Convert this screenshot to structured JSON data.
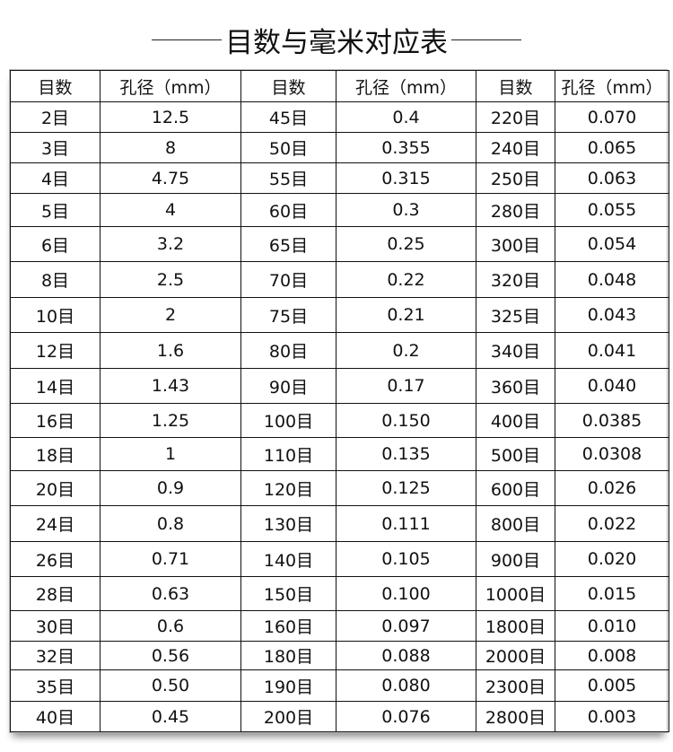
{
  "title": "目数与毫米对应表",
  "headers": [
    "目数",
    "孔径（mm）",
    "目数",
    "孔径（mm）",
    "目数",
    "孔径（mm）"
  ],
  "rows": [
    [
      "2目",
      "12.5",
      "45目",
      "0.4",
      "220目",
      "0.070"
    ],
    [
      "3目",
      "8",
      "50目",
      "0.355",
      "240目",
      "0.065"
    ],
    [
      "4目",
      "4.75",
      "55目",
      "0.315",
      "250目",
      "0.063"
    ],
    [
      "5目",
      "4",
      "60目",
      "0.3",
      "280目",
      "0.055"
    ],
    [
      "6目",
      "3.2",
      "65目",
      "0.25",
      "300目",
      "0.054"
    ],
    [
      "8目",
      "2.5",
      "70目",
      "0.22",
      "320目",
      "0.048"
    ],
    [
      "10目",
      "2",
      "75目",
      "0.21",
      "325目",
      "0.043"
    ],
    [
      "12目",
      "1.6",
      "80目",
      "0.2",
      "340目",
      "0.041"
    ],
    [
      "14目",
      "1.43",
      "90目",
      "0.17",
      "360目",
      "0.040"
    ],
    [
      "16目",
      "1.25",
      "100目",
      "0.150",
      "400目",
      "0.0385"
    ],
    [
      "18目",
      "1",
      "110目",
      "0.135",
      "500目",
      "0.0308"
    ],
    [
      "20目",
      "0.9",
      "120目",
      "0.125",
      "600目",
      "0.026"
    ],
    [
      "24目",
      "0.8",
      "130目",
      "0.111",
      "800目",
      "0.022"
    ],
    [
      "26目",
      "0.71",
      "140目",
      "0.105",
      "900目",
      "0.020"
    ],
    [
      "28目",
      "0.63",
      "150目",
      "0.100",
      "1000目",
      "0.015"
    ],
    [
      "30目",
      "0.6",
      "160目",
      "0.097",
      "1800目",
      "0.010"
    ],
    [
      "32目",
      "0.56",
      "180目",
      "0.088",
      "2000目",
      "0.008"
    ],
    [
      "35目",
      "0.50",
      "190目",
      "0.080",
      "2300目",
      "0.005"
    ],
    [
      "40目",
      "0.45",
      "200目",
      "0.076",
      "2800目",
      "0.003"
    ]
  ]
}
